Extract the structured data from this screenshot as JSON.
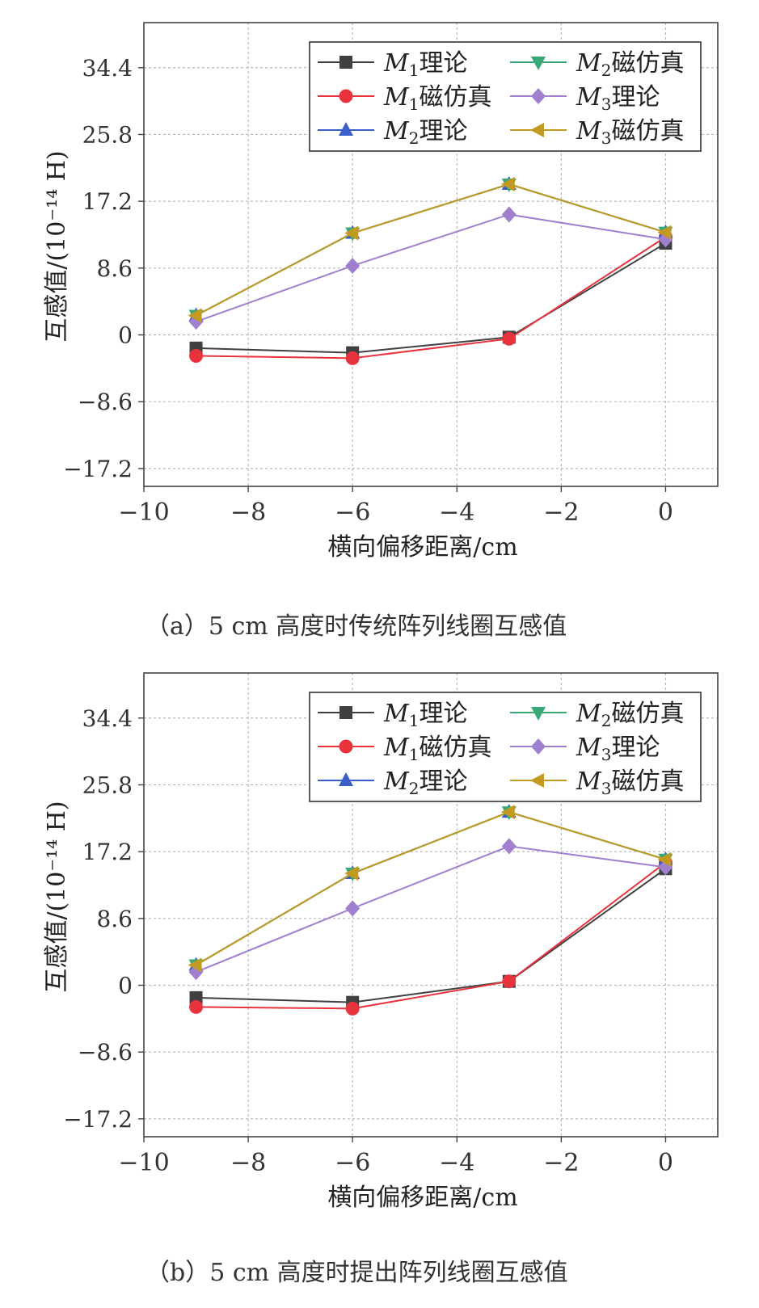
{
  "chart_data": [
    {
      "type": "line",
      "panel": "a",
      "caption": "（a）5 cm 高度时传统阵列线圈互感值",
      "xlabel": "横向偏移距离/cm",
      "ylabel": "互感值/(10⁻¹⁴ H)",
      "xlim": [
        -10,
        1
      ],
      "ylim": [
        -19.5,
        40.2
      ],
      "xticks": [
        -10,
        -8,
        -6,
        -4,
        -2,
        0
      ],
      "xtick_labels": [
        "−10",
        "−8",
        "−6",
        "−4",
        "−2",
        "0"
      ],
      "yticks": [
        34.4,
        25.8,
        17.2,
        8.6,
        0,
        -8.6,
        -17.2
      ],
      "ytick_labels": [
        "34.4",
        "25.8",
        "17.2",
        "8.6",
        "0",
        "−8.6",
        "−17.2"
      ],
      "grid": true,
      "legend_position": "top-right",
      "x": [
        -9,
        -6,
        -3,
        0
      ],
      "series": [
        {
          "name": "M1理论",
          "sym": "M",
          "sub": "1",
          "txt": "理论",
          "color": "#404040",
          "marker": "square",
          "values": [
            -1.7,
            -2.3,
            -0.3,
            11.8
          ]
        },
        {
          "name": "M1磁仿真",
          "sym": "M",
          "sub": "1",
          "txt": "磁仿真",
          "color": "#e8333d",
          "marker": "circle",
          "values": [
            -2.7,
            -3.0,
            -0.5,
            12.6
          ]
        },
        {
          "name": "M2理论",
          "sym": "M",
          "sub": "2",
          "txt": "理论",
          "color": "#3a5fc8",
          "marker": "triangle-up",
          "values": [
            2.5,
            13.1,
            19.4,
            13.2
          ]
        },
        {
          "name": "M2磁仿真",
          "sym": "M",
          "sub": "2",
          "txt": "磁仿真",
          "color": "#3aa876",
          "marker": "triangle-down",
          "values": [
            2.5,
            13.1,
            19.4,
            13.2
          ]
        },
        {
          "name": "M3理论",
          "sym": "M",
          "sub": "3",
          "txt": "理论",
          "color": "#a17fcf",
          "marker": "diamond",
          "values": [
            1.7,
            8.9,
            15.5,
            12.3
          ]
        },
        {
          "name": "M3磁仿真",
          "sym": "M",
          "sub": "3",
          "txt": "磁仿真",
          "color": "#c39a21",
          "marker": "triangle-left",
          "values": [
            2.5,
            13.1,
            19.4,
            13.2
          ]
        }
      ]
    },
    {
      "type": "line",
      "panel": "b",
      "caption": "（b）5 cm 高度时提出阵列线圈互感值",
      "xlabel": "横向偏移距离/cm",
      "ylabel": "互感值/(10⁻¹⁴ H)",
      "xlim": [
        -10,
        1
      ],
      "ylim": [
        -19.5,
        40.2
      ],
      "xticks": [
        -10,
        -8,
        -6,
        -4,
        -2,
        0
      ],
      "xtick_labels": [
        "−10",
        "−8",
        "−6",
        "−4",
        "−2",
        "0"
      ],
      "yticks": [
        34.4,
        25.8,
        17.2,
        8.6,
        0,
        -8.6,
        -17.2
      ],
      "ytick_labels": [
        "34.4",
        "25.8",
        "17.2",
        "8.6",
        "0",
        "−8.6",
        "−17.2"
      ],
      "grid": true,
      "legend_position": "top-right",
      "x": [
        -9,
        -6,
        -3,
        0
      ],
      "series": [
        {
          "name": "M1理论",
          "sym": "M",
          "sub": "1",
          "txt": "理论",
          "color": "#404040",
          "marker": "square",
          "values": [
            -1.6,
            -2.2,
            0.5,
            15.0
          ]
        },
        {
          "name": "M1磁仿真",
          "sym": "M",
          "sub": "1",
          "txt": "磁仿真",
          "color": "#e8333d",
          "marker": "circle",
          "values": [
            -2.8,
            -3.0,
            0.5,
            15.8
          ]
        },
        {
          "name": "M2理论",
          "sym": "M",
          "sub": "2",
          "txt": "理论",
          "color": "#3a5fc8",
          "marker": "triangle-up",
          "values": [
            2.6,
            14.4,
            22.3,
            16.2
          ]
        },
        {
          "name": "M2磁仿真",
          "sym": "M",
          "sub": "2",
          "txt": "磁仿真",
          "color": "#3aa876",
          "marker": "triangle-down",
          "values": [
            2.6,
            14.4,
            22.3,
            16.2
          ]
        },
        {
          "name": "M3理论",
          "sym": "M",
          "sub": "3",
          "txt": "理论",
          "color": "#a17fcf",
          "marker": "diamond",
          "values": [
            1.7,
            9.9,
            17.9,
            15.2
          ]
        },
        {
          "name": "M3磁仿真",
          "sym": "M",
          "sub": "3",
          "txt": "磁仿真",
          "color": "#c39a21",
          "marker": "triangle-left",
          "values": [
            2.6,
            14.4,
            22.3,
            16.2
          ]
        }
      ]
    }
  ]
}
